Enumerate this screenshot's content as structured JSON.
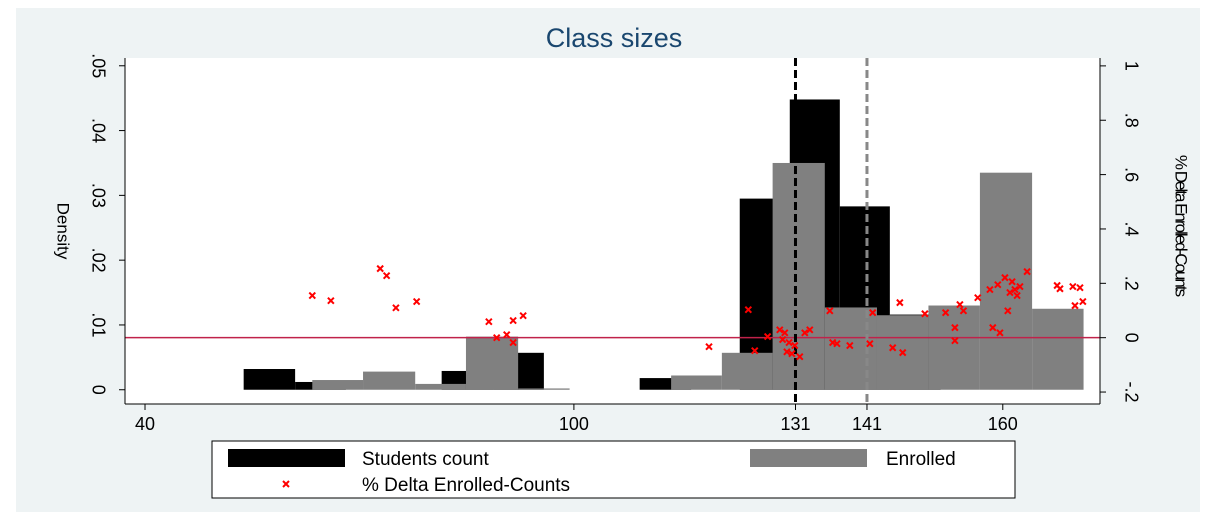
{
  "chart_data": {
    "type": "histogram",
    "title": "Class sizes",
    "y_label": "Density",
    "y2_label": "% Delta Enrolled-Counts",
    "xlim": [
      37.2,
      173.6
    ],
    "ylim": [
      -0.0022,
      0.0512
    ],
    "y2lim": [
      -0.244,
      1.029
    ],
    "xticks": [
      40,
      100,
      131,
      141,
      160
    ],
    "yticks": [
      0,
      {
        "value": 0.01,
        "label": ".01"
      },
      {
        "value": 0.02,
        "label": ".02"
      },
      {
        "value": 0.03,
        "label": ".03"
      },
      {
        "value": 0.04,
        "label": ".04"
      },
      {
        "value": 0.05,
        "label": ".05"
      }
    ],
    "y2ticks": [
      {
        "value": -0.2,
        "label": "-.2"
      },
      0,
      {
        "value": 0.2,
        "label": ".2"
      },
      {
        "value": 0.4,
        "label": ".4"
      },
      {
        "value": 0.6,
        "label": ".6"
      },
      {
        "value": 0.8,
        "label": ".8"
      },
      1
    ],
    "xlines": [
      {
        "value": 131,
        "color": "#000000"
      },
      {
        "value": 141,
        "color": "#888888"
      }
    ],
    "y2line": {
      "value": 0,
      "color": "#c0224a"
    },
    "series": [
      {
        "name": "Students count",
        "type": "histogram",
        "color": "#000000",
        "bins": [
          53.8,
          61.0,
          68.1,
          75.2,
          81.5,
          88.7,
          95.8,
          102.9,
          109.2,
          116.4,
          123.2,
          130.2,
          137.2,
          144.2,
          151.3
        ],
        "values": [
          0.0032,
          0.0012,
          0,
          0,
          0.0029,
          0.0057,
          0,
          0,
          0.0018,
          0,
          0.0295,
          0.0448,
          0.0283,
          0.0116
        ]
      },
      {
        "name": "Enrolled",
        "type": "histogram",
        "color": "#808080",
        "bins": [
          63.4,
          70.5,
          77.8,
          84.9,
          92.2,
          99.4,
          106.6,
          113.6,
          120.7,
          127.8,
          135.1,
          142.4,
          149.6,
          156.8,
          164.1,
          171.3
        ],
        "values": [
          0.0015,
          0.0028,
          0.0009,
          0.0082,
          0.0002,
          0,
          0,
          0.0022,
          0.0057,
          0.035,
          0.0127,
          0.0115,
          0.013,
          0.0335,
          0.0125
        ]
      },
      {
        "name": "% Delta Enrolled-Counts",
        "type": "scatter",
        "axis": "y2",
        "color": "#ff0000",
        "x": [
          63.4,
          66.0,
          72.9,
          73.8,
          75.1,
          78.0,
          88.1,
          89.2,
          90.6,
          91.5,
          91.5,
          92.9,
          118.9,
          124.4,
          125.3,
          127.1,
          128.8,
          129.5,
          129.2,
          130.1,
          130.9,
          129.8,
          130.5,
          131.6,
          132.3,
          133.0,
          136.2,
          135.8,
          136.8,
          138.6,
          141.4,
          141.8,
          144.6,
          145.6,
          146.0,
          149.1,
          152.0,
          153.3,
          153.3,
          154.0,
          154.5,
          156.5,
          158.2,
          158.6,
          159.3,
          159.6,
          160.3,
          160.7,
          161.0,
          161.3,
          161.7,
          162.0,
          162.4,
          163.4,
          167.6,
          168.0,
          169.8,
          170.8,
          170.1,
          171.2
        ],
        "values": [
          0.155,
          0.136,
          0.254,
          0.228,
          0.11,
          0.133,
          0.059,
          0,
          0.011,
          0.063,
          -0.018,
          0.081,
          -0.033,
          0.103,
          -0.048,
          0.004,
          0.029,
          0.018,
          -0.007,
          -0.018,
          -0.029,
          -0.052,
          -0.059,
          -0.07,
          0.018,
          0.029,
          -0.018,
          0.099,
          -0.022,
          -0.029,
          -0.022,
          0.092,
          -0.037,
          0.129,
          -0.055,
          0.088,
          0.092,
          -0.011,
          0.037,
          0.122,
          0.099,
          0.147,
          0.177,
          0.037,
          0.195,
          0.018,
          0.221,
          0.099,
          0.166,
          0.206,
          0.177,
          0.155,
          0.188,
          0.243,
          0.192,
          0.18,
          0.188,
          0.184,
          0.118,
          0.133
        ]
      }
    ]
  }
}
